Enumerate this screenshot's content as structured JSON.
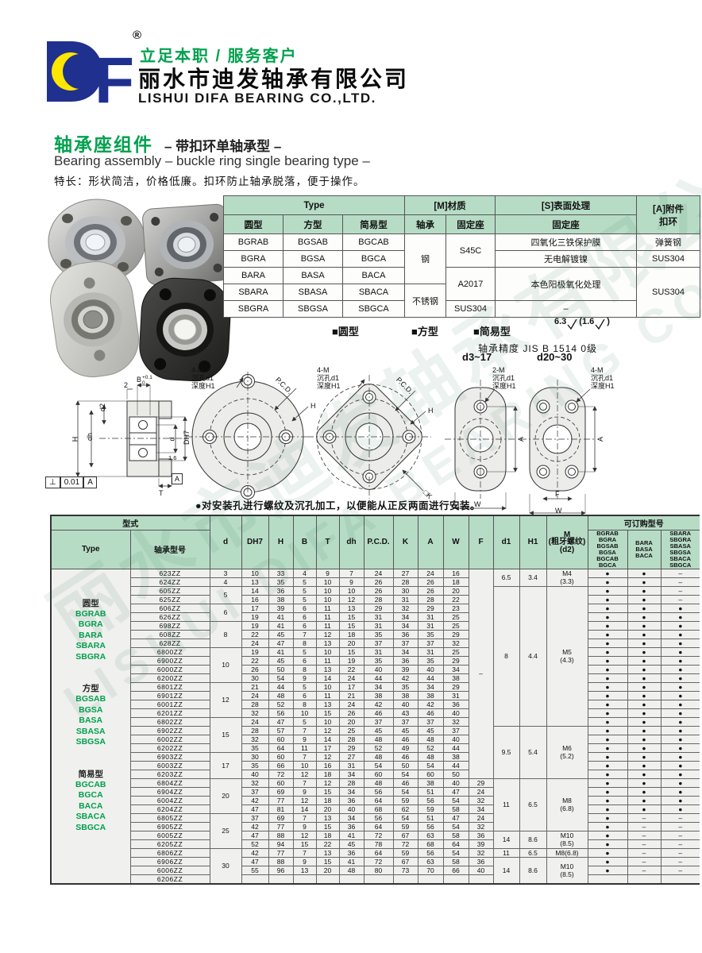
{
  "watermark": {
    "line1": "丽水市迪发轴承有限公司",
    "line2": "LISHUI DIFA BEARING CO.,LTD."
  },
  "header": {
    "logo": "DF",
    "reg_mark": "®",
    "slogan": "立足本职 / 服务客户",
    "company_cn": "丽水市迪发轴承有限公司",
    "company_en": "LISHUI DIFA BEARING CO.,LTD."
  },
  "title": {
    "cn": "轴承座组件",
    "cn_sub": "– 带扣环单轴承型 –",
    "en": "Bearing assembly – buckle ring single bearing type –",
    "features": "特长：形状简洁，价格低廉。扣环防止轴承脱落，便于操作。"
  },
  "type_table": {
    "h_type": "Type",
    "h_material": "[M]材质",
    "h_surface": "[S]表面处理",
    "h_accessory": "[A]附件\n扣环",
    "h_round": "圆型",
    "h_square": "方型",
    "h_simple": "简易型",
    "h_bearing": "轴承",
    "h_housing": "固定座",
    "h_housing_s": "固定座",
    "rows": [
      [
        "BGRAB",
        "BGSAB",
        "BGCAB"
      ],
      [
        "BGRA",
        "BGSA",
        "BGCA"
      ],
      [
        "BARA",
        "BASA",
        "BACA"
      ],
      [
        "SBARA",
        "SBASA",
        "SBACA"
      ],
      [
        "SBGRA",
        "SBGSA",
        "SBGCA"
      ]
    ],
    "mat_steel": "钢",
    "mat_stainless": "不锈钢",
    "mat_s45c": "S45C",
    "mat_a2017": "A2017",
    "mat_sus304": "SUS304",
    "surf_oxide": "四氧化三铁保护膜",
    "surf_nickel": "无电解镀镍",
    "surf_anodize": "本色阳极氧化处理",
    "surf_none": "–",
    "acc_spring": "弹簧钢",
    "acc_sus_a": "SUS304",
    "acc_sus_b": "SUS304"
  },
  "sections": {
    "round": "■圆型",
    "square": "■方型",
    "simple": "■简易型",
    "rough_main": "6.3",
    "rough_open": "(",
    "rough_sub": "1.6",
    "rough_close": ")",
    "precision": "轴承精度 JIS B 1514 0级",
    "d_small": "d3~17",
    "d_large": "d20~30"
  },
  "drawings": {
    "cs": {
      "two": "2",
      "b": "B",
      "b_tol_top": "+0.1",
      "b_tol_bot": "0",
      "d2": "d2",
      "dh": "dh",
      "h": "H",
      "d": "d",
      "dh7": "DH7",
      "r": "1.6",
      "a": "A",
      "t": "T",
      "perp": "⊥",
      "tol": "0.01",
      "datum": "A"
    },
    "round": {
      "bolt": "4-M\n沉孔d1\n深度H1",
      "pcd": "P.C.D.",
      "h": "H"
    },
    "square": {
      "bolt": "4-M\n沉孔d1\n深度H1",
      "pcd": "P.C.D.",
      "h": "H",
      "k": "□K"
    },
    "oval_small": {
      "bolt": "2-M\n沉孔d1\n深度H1",
      "a": "A",
      "w": "W"
    },
    "oval_large": {
      "bolt": "4-M\n沉孔d1\n深度H1",
      "a": "A",
      "f": "F",
      "w": "W"
    }
  },
  "note": "●对安装孔进行螺纹及沉孔加工，以便能从正反两面进行安装。",
  "main_table": {
    "h_shiki": "型式",
    "h_type": "Type",
    "h_model": "轴承型号",
    "h_cols": [
      "d",
      "DH7",
      "H",
      "B",
      "T",
      "dh",
      "P.C.D.",
      "K",
      "A",
      "W",
      "F",
      "d1",
      "H1"
    ],
    "h_m": "M\n(粗牙螺纹)\n(d2)",
    "h_order": "可订购型号",
    "order_col1": [
      "BGRAB",
      "BGRA",
      "BGSAB",
      "BGSA",
      "BGCAB",
      "BGCA"
    ],
    "order_col2": [
      "BARA",
      "BASA",
      "BACA"
    ],
    "order_col3": [
      "SBARA",
      "SBGRA",
      "SBASA",
      "SBGSA",
      "SBACA",
      "SBGCA"
    ],
    "categories": [
      {
        "title": "圆型",
        "models": [
          "BGRAB",
          "BGRA",
          "BARA",
          "SBARA",
          "SBGRA"
        ]
      },
      {
        "title": "方型",
        "models": [
          "BGSAB",
          "BGSA",
          "BASA",
          "SBASA",
          "SBGSA"
        ]
      },
      {
        "title": "简易型",
        "models": [
          "BGCAB",
          "BGCA",
          "BACA",
          "SBACA",
          "SBGCA"
        ]
      }
    ],
    "d_groups": [
      [
        "3",
        1
      ],
      [
        "4",
        1
      ],
      [
        "5",
        2
      ],
      [
        "6",
        2
      ],
      [
        "8",
        3
      ],
      [
        "10",
        4
      ],
      [
        "12",
        4
      ],
      [
        "15",
        4
      ],
      [
        "17",
        3
      ],
      [
        "20",
        4
      ],
      [
        "25",
        4
      ],
      [
        "30",
        4
      ]
    ],
    "f_merged": {
      "rows": 24,
      "label": "–"
    },
    "m_groups": [
      {
        "d1": "6.5",
        "h1": "3.4",
        "m": [
          "M4",
          "(3.3)"
        ],
        "rows": 2
      },
      {
        "d1": "8",
        "h1": "4.4",
        "m": [
          "M5",
          "(4.3)"
        ],
        "rows": 16
      },
      {
        "d1": "9.5",
        "h1": "5.4",
        "m": [
          "M6",
          "(5.2)"
        ],
        "rows": 6
      },
      {
        "d1": "11",
        "h1": "6.5",
        "m": [
          "M8",
          "(6.8)"
        ],
        "rows": 6
      },
      {
        "d1": "14",
        "h1": "8.6",
        "m": [
          "M10",
          "(8.5)"
        ],
        "rows": 2
      },
      {
        "d1": "11",
        "h1": "6.5",
        "m": [
          "M8(6.8)"
        ],
        "rows": 1
      },
      {
        "d1": "14",
        "h1": "8.6",
        "m": [
          "M10",
          "(8.5)"
        ],
        "rows": 3
      }
    ],
    "rows": [
      {
        "model": "623ZZ",
        "vals": [
          "10",
          "33",
          "4",
          "9",
          "7",
          "24",
          "27",
          "24",
          "16"
        ],
        "dots": [
          "●",
          "●",
          "–"
        ]
      },
      {
        "model": "624ZZ",
        "vals": [
          "13",
          "35",
          "5",
          "10",
          "9",
          "26",
          "28",
          "26",
          "18"
        ],
        "dots": [
          "●",
          "●",
          "–"
        ]
      },
      {
        "model": "605ZZ",
        "vals": [
          "14",
          "36",
          "5",
          "10",
          "10",
          "26",
          "30",
          "26",
          "20"
        ],
        "dots": [
          "●",
          "●",
          "–"
        ]
      },
      {
        "model": "625ZZ",
        "vals": [
          "16",
          "38",
          "5",
          "10",
          "12",
          "28",
          "31",
          "28",
          "22"
        ],
        "dots": [
          "●",
          "●",
          "–"
        ]
      },
      {
        "model": "606ZZ",
        "vals": [
          "17",
          "39",
          "6",
          "11",
          "13",
          "29",
          "32",
          "29",
          "23"
        ],
        "dots": [
          "●",
          "●",
          "●"
        ]
      },
      {
        "model": "626ZZ",
        "vals": [
          "19",
          "41",
          "6",
          "11",
          "15",
          "31",
          "34",
          "31",
          "25"
        ],
        "dots": [
          "●",
          "●",
          "●"
        ]
      },
      {
        "model": "698ZZ",
        "vals": [
          "19",
          "41",
          "6",
          "11",
          "15",
          "31",
          "34",
          "31",
          "25"
        ],
        "dots": [
          "●",
          "●",
          "●"
        ]
      },
      {
        "model": "608ZZ",
        "vals": [
          "22",
          "45",
          "7",
          "12",
          "18",
          "35",
          "36",
          "35",
          "29"
        ],
        "dots": [
          "●",
          "●",
          "●"
        ]
      },
      {
        "model": "628ZZ",
        "vals": [
          "24",
          "47",
          "8",
          "13",
          "20",
          "37",
          "37",
          "37",
          "32"
        ],
        "dots": [
          "●",
          "●",
          "●"
        ]
      },
      {
        "model": "6800ZZ",
        "vals": [
          "19",
          "41",
          "5",
          "10",
          "15",
          "31",
          "34",
          "31",
          "25"
        ],
        "dots": [
          "●",
          "●",
          "●"
        ]
      },
      {
        "model": "6900ZZ",
        "vals": [
          "22",
          "45",
          "6",
          "11",
          "19",
          "35",
          "36",
          "35",
          "29"
        ],
        "dots": [
          "●",
          "●",
          "●"
        ]
      },
      {
        "model": "6000ZZ",
        "vals": [
          "26",
          "50",
          "8",
          "13",
          "22",
          "40",
          "39",
          "40",
          "34"
        ],
        "dots": [
          "●",
          "●",
          "●"
        ]
      },
      {
        "model": "6200ZZ",
        "vals": [
          "30",
          "54",
          "9",
          "14",
          "24",
          "44",
          "42",
          "44",
          "38"
        ],
        "dots": [
          "●",
          "●",
          "●"
        ]
      },
      {
        "model": "6801ZZ",
        "vals": [
          "21",
          "44",
          "5",
          "10",
          "17",
          "34",
          "35",
          "34",
          "29"
        ],
        "dots": [
          "●",
          "●",
          "●"
        ]
      },
      {
        "model": "6901ZZ",
        "vals": [
          "24",
          "48",
          "6",
          "11",
          "21",
          "38",
          "38",
          "38",
          "31"
        ],
        "dots": [
          "●",
          "●",
          "●"
        ]
      },
      {
        "model": "6001ZZ",
        "vals": [
          "28",
          "52",
          "8",
          "13",
          "24",
          "42",
          "40",
          "42",
          "36"
        ],
        "dots": [
          "●",
          "●",
          "●"
        ]
      },
      {
        "model": "6201ZZ",
        "vals": [
          "32",
          "56",
          "10",
          "15",
          "26",
          "46",
          "43",
          "46",
          "40"
        ],
        "dots": [
          "●",
          "●",
          "●"
        ]
      },
      {
        "model": "6802ZZ",
        "vals": [
          "24",
          "47",
          "5",
          "10",
          "20",
          "37",
          "37",
          "37",
          "32"
        ],
        "dots": [
          "●",
          "●",
          "●"
        ]
      },
      {
        "model": "6902ZZ",
        "vals": [
          "28",
          "57",
          "7",
          "12",
          "25",
          "45",
          "45",
          "45",
          "37"
        ],
        "dots": [
          "●",
          "●",
          "●"
        ]
      },
      {
        "model": "6002ZZ",
        "vals": [
          "32",
          "60",
          "9",
          "14",
          "28",
          "48",
          "46",
          "48",
          "40"
        ],
        "dots": [
          "●",
          "●",
          "●"
        ]
      },
      {
        "model": "6202ZZ",
        "vals": [
          "35",
          "64",
          "11",
          "17",
          "29",
          "52",
          "49",
          "52",
          "44"
        ],
        "dots": [
          "●",
          "●",
          "●"
        ]
      },
      {
        "model": "6903ZZ",
        "vals": [
          "30",
          "60",
          "7",
          "12",
          "27",
          "48",
          "46",
          "48",
          "38"
        ],
        "dots": [
          "●",
          "●",
          "●"
        ]
      },
      {
        "model": "6003ZZ",
        "vals": [
          "35",
          "66",
          "10",
          "16",
          "31",
          "54",
          "50",
          "54",
          "44"
        ],
        "dots": [
          "●",
          "●",
          "●"
        ]
      },
      {
        "model": "6203ZZ",
        "vals": [
          "40",
          "72",
          "12",
          "18",
          "34",
          "60",
          "54",
          "60",
          "50"
        ],
        "dots": [
          "●",
          "●",
          "●"
        ]
      },
      {
        "model": "6804ZZ",
        "vals": [
          "32",
          "60",
          "7",
          "12",
          "28",
          "48",
          "46",
          "38",
          "40",
          "29"
        ],
        "dots": [
          "●",
          "●",
          "●"
        ]
      },
      {
        "model": "6904ZZ",
        "vals": [
          "37",
          "69",
          "9",
          "15",
          "34",
          "56",
          "54",
          "51",
          "47",
          "24"
        ],
        "dots": [
          "●",
          "●",
          "●"
        ]
      },
      {
        "model": "6004ZZ",
        "vals": [
          "42",
          "77",
          "12",
          "18",
          "36",
          "64",
          "59",
          "56",
          "54",
          "32"
        ],
        "dots": [
          "●",
          "●",
          "●"
        ]
      },
      {
        "model": "6204ZZ",
        "vals": [
          "47",
          "81",
          "14",
          "20",
          "40",
          "68",
          "62",
          "59",
          "58",
          "34"
        ],
        "dots": [
          "●",
          "●",
          "●"
        ]
      },
      {
        "model": "6805ZZ",
        "vals": [
          "37",
          "69",
          "7",
          "13",
          "34",
          "56",
          "54",
          "51",
          "47",
          "24"
        ],
        "dots": [
          "●",
          "–",
          "–"
        ]
      },
      {
        "model": "6905ZZ",
        "vals": [
          "42",
          "77",
          "9",
          "15",
          "36",
          "64",
          "59",
          "56",
          "54",
          "32"
        ],
        "dots": [
          "●",
          "–",
          "–"
        ]
      },
      {
        "model": "6005ZZ",
        "vals": [
          "47",
          "88",
          "12",
          "18",
          "41",
          "72",
          "67",
          "63",
          "58",
          "36"
        ],
        "dots": [
          "●",
          "–",
          "–"
        ]
      },
      {
        "model": "6205ZZ",
        "vals": [
          "52",
          "94",
          "15",
          "22",
          "45",
          "78",
          "72",
          "68",
          "64",
          "39"
        ],
        "dots": [
          "●",
          "–",
          "–"
        ]
      },
      {
        "model": "6806ZZ",
        "vals": [
          "42",
          "77",
          "7",
          "13",
          "36",
          "64",
          "59",
          "56",
          "54",
          "32"
        ],
        "dots": [
          "●",
          "–",
          "–"
        ]
      },
      {
        "model": "6906ZZ",
        "vals": [
          "47",
          "88",
          "9",
          "15",
          "41",
          "72",
          "67",
          "63",
          "58",
          "36"
        ],
        "dots": [
          "●",
          "–",
          "–"
        ]
      },
      {
        "model": "6006ZZ",
        "vals": [
          "55",
          "96",
          "13",
          "20",
          "48",
          "80",
          "73",
          "70",
          "66",
          "40"
        ],
        "dots": [
          "●",
          "–",
          "–"
        ]
      },
      {
        "model": "6206ZZ",
        "vals": [
          "",
          "",
          "",
          "",
          "",
          "",
          "",
          "",
          "",
          ""
        ],
        "dots": [
          "",
          "",
          ""
        ]
      }
    ]
  }
}
